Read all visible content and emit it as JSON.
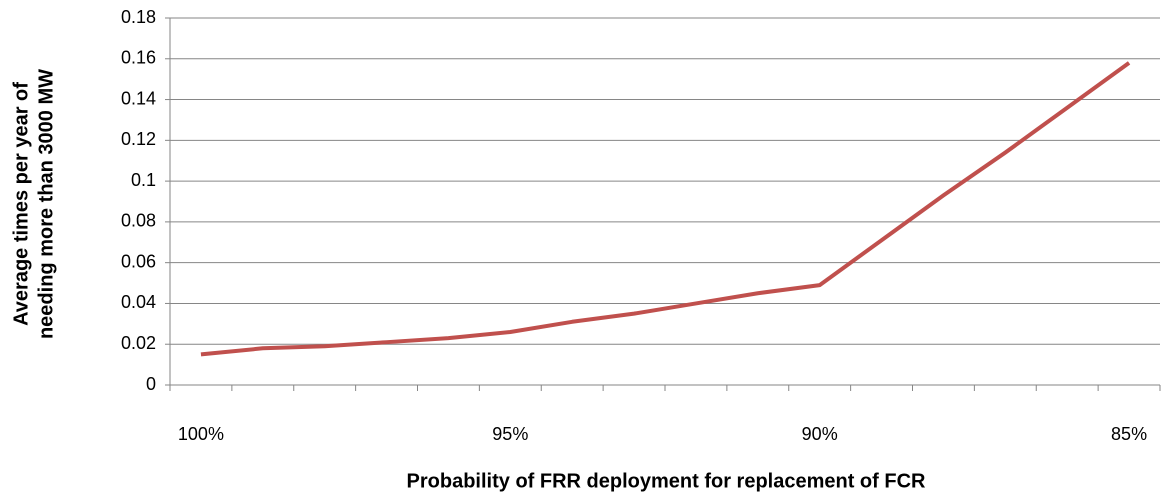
{
  "chart_data": {
    "type": "line",
    "xlabel": "Probability of FRR deployment for replacement of FCR",
    "ylabel": [
      "Average times per year of",
      "needing more than 3000 MW"
    ],
    "categories": [
      "100%",
      null,
      null,
      null,
      null,
      "95%",
      null,
      null,
      null,
      null,
      "90%",
      null,
      null,
      null,
      null,
      "85%"
    ],
    "series": [
      {
        "color": "#c0504d",
        "values": [
          0.015,
          0.018,
          0.019,
          0.021,
          0.023,
          0.026,
          0.031,
          0.035,
          0.04,
          0.045,
          0.049,
          0.071,
          0.093,
          0.114,
          0.136,
          0.158
        ]
      }
    ],
    "ylim": [
      0,
      0.18
    ],
    "yticks": [
      0,
      0.02,
      0.04,
      0.06,
      0.08,
      0.1,
      0.12,
      0.14,
      0.16,
      0.18
    ],
    "grid": true
  }
}
